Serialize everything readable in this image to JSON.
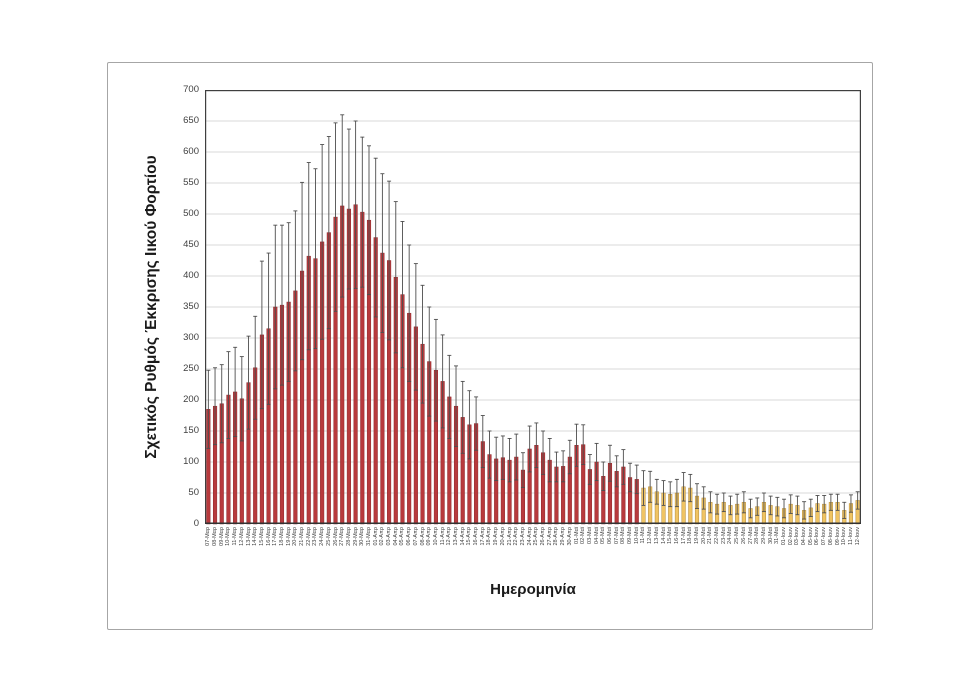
{
  "figure": {
    "ylabel": "Σχετικός Ρυθμός Έκκρισης Ιικού Φορτίου",
    "xlabel": "Ημερομηνία"
  },
  "chart_data": {
    "type": "bar",
    "title": "",
    "xlabel": "Ημερομηνία",
    "ylabel": "Σχετικός Ρυθμός Έκκρισης Ιικού Φορτίου",
    "ylim": [
      0,
      700
    ],
    "ytick_step": 50,
    "grid": true,
    "legend": false,
    "error_bars": "symmetric",
    "categories": [
      "07-Μαρ",
      "08-Μαρ",
      "09-Μαρ",
      "10-Μαρ",
      "11-Μαρ",
      "12-Μαρ",
      "13-Μαρ",
      "14-Μαρ",
      "15-Μαρ",
      "16-Μαρ",
      "17-Μαρ",
      "18-Μαρ",
      "19-Μαρ",
      "20-Μαρ",
      "21-Μαρ",
      "22-Μαρ",
      "23-Μαρ",
      "24-Μαρ",
      "25-Μαρ",
      "26-Μαρ",
      "27-Μαρ",
      "28-Μαρ",
      "29-Μαρ",
      "30-Μαρ",
      "31-Μαρ",
      "01-Απρ",
      "02-Απρ",
      "03-Απρ",
      "04-Απρ",
      "05-Απρ",
      "06-Απρ",
      "07-Απρ",
      "08-Απρ",
      "09-Απρ",
      "10-Απρ",
      "11-Απρ",
      "12-Απρ",
      "13-Απρ",
      "14-Απρ",
      "15-Απρ",
      "16-Απρ",
      "17-Απρ",
      "18-Απρ",
      "19-Απρ",
      "20-Απρ",
      "21-Απρ",
      "22-Απρ",
      "23-Απρ",
      "24-Απρ",
      "25-Απρ",
      "26-Απρ",
      "27-Απρ",
      "28-Απρ",
      "29-Απρ",
      "30-Απρ",
      "01-Μαϊ",
      "02-Μαϊ",
      "03-Μαϊ",
      "04-Μαϊ",
      "05-Μαϊ",
      "06-Μαϊ",
      "07-Μαϊ",
      "08-Μαϊ",
      "09-Μαϊ",
      "10-Μαϊ",
      "11-Μαϊ",
      "12-Μαϊ",
      "13-Μαϊ",
      "14-Μαϊ",
      "15-Μαϊ",
      "16-Μαϊ",
      "17-Μαϊ",
      "18-Μαϊ",
      "19-Μαϊ",
      "20-Μαϊ",
      "21-Μαϊ",
      "22-Μαϊ",
      "23-Μαϊ",
      "24-Μαϊ",
      "25-Μαϊ",
      "26-Μαϊ",
      "27-Μαϊ",
      "28-Μαϊ",
      "29-Μαϊ",
      "30-Μαϊ",
      "31-Μαϊ",
      "01-Ιουν",
      "02-Ιουν",
      "03-Ιουν",
      "04-Ιουν",
      "05-Ιουν",
      "06-Ιουν",
      "07-Ιουν",
      "08-Ιουν",
      "09-Ιουν",
      "10-Ιουν",
      "11-Ιουν",
      "12-Ιουν"
    ],
    "values": [
      185,
      190,
      194,
      208,
      213,
      202,
      228,
      252,
      305,
      315,
      350,
      353,
      358,
      376,
      408,
      432,
      428,
      455,
      470,
      495,
      513,
      508,
      515,
      503,
      490,
      462,
      437,
      425,
      398,
      370,
      340,
      318,
      290,
      262,
      248,
      230,
      205,
      190,
      172,
      160,
      162,
      133,
      112,
      105,
      107,
      103,
      108,
      87,
      121,
      127,
      115,
      103,
      92,
      93,
      108,
      127,
      128,
      88,
      100,
      77,
      98,
      85,
      92,
      75,
      72,
      58,
      60,
      52,
      50,
      48,
      50,
      60,
      58,
      45,
      42,
      35,
      32,
      35,
      30,
      32,
      35,
      25,
      28,
      35,
      30,
      28,
      25,
      32,
      30,
      22,
      26,
      33,
      32,
      35,
      35,
      22,
      33,
      38
    ],
    "error_high": [
      248,
      252,
      257,
      278,
      285,
      270,
      303,
      335,
      424,
      437,
      482,
      482,
      486,
      505,
      551,
      583,
      573,
      612,
      625,
      647,
      660,
      637,
      650,
      624,
      610,
      590,
      565,
      553,
      520,
      488,
      450,
      420,
      385,
      350,
      330,
      305,
      272,
      255,
      230,
      215,
      205,
      175,
      150,
      140,
      142,
      138,
      145,
      115,
      158,
      163,
      150,
      138,
      116,
      118,
      135,
      161,
      160,
      112,
      130,
      100,
      127,
      110,
      120,
      98,
      95,
      86,
      85,
      72,
      70,
      68,
      72,
      83,
      80,
      65,
      60,
      52,
      48,
      50,
      45,
      48,
      52,
      40,
      42,
      50,
      45,
      43,
      40,
      47,
      45,
      36,
      40,
      46,
      46,
      48,
      48,
      35,
      47,
      52
    ],
    "bar_groups": [
      {
        "name": "red",
        "count": 65,
        "fill": "#b83a3d",
        "stroke": "#8e282c"
      },
      {
        "name": "yellow",
        "count": 33,
        "fill": "#f0c463",
        "stroke": "#b18a3e"
      }
    ],
    "colors": {
      "error_bar": "#4d4d4d",
      "gridline": "#d9d9d9",
      "axis": "#3f3f3f",
      "tick_text": "#404040"
    }
  }
}
